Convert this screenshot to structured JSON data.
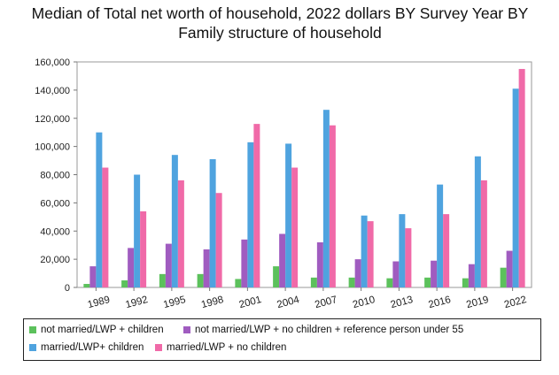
{
  "chart_data": {
    "type": "bar",
    "title_lines": [
      "Median of Total net worth of household, 2022 dollars BY Survey Year BY",
      "Family structure of household"
    ],
    "xlabel": "",
    "ylabel": "",
    "ylim": [
      0,
      160000
    ],
    "yticks": [
      0,
      20000,
      40000,
      60000,
      80000,
      100000,
      120000,
      140000,
      160000
    ],
    "ytick_labels": [
      "0",
      "20,000",
      "40,000",
      "60,000",
      "80,000",
      "100,000",
      "120,000",
      "140,000",
      "160,000"
    ],
    "grid": false,
    "legend_position": "bottom",
    "categories": [
      "1989",
      "1992",
      "1995",
      "1998",
      "2001",
      "2004",
      "2007",
      "2010",
      "2013",
      "2016",
      "2019",
      "2022"
    ],
    "series": [
      {
        "name": "not married/LWP + children",
        "color": "#5cc15c",
        "values": [
          2500,
          5000,
          9500,
          9500,
          6000,
          15000,
          7000,
          7000,
          6500,
          7000,
          6500,
          14000
        ]
      },
      {
        "name": "not married/LWP + no children + reference person under 55",
        "color": "#a05cc0",
        "values": [
          15000,
          28000,
          31000,
          27000,
          34000,
          38000,
          32000,
          20000,
          18500,
          19000,
          16500,
          26000
        ]
      },
      {
        "name": "married/LWP+ children",
        "color": "#4fa3df",
        "values": [
          110000,
          80000,
          94000,
          91000,
          103000,
          102000,
          126000,
          51000,
          52000,
          73000,
          93000,
          141000
        ]
      },
      {
        "name": "married/LWP + no children",
        "color": "#f06aa8",
        "values": [
          85000,
          54000,
          76000,
          67000,
          116000,
          85000,
          115000,
          47000,
          42000,
          52000,
          76000,
          155000
        ]
      }
    ]
  }
}
